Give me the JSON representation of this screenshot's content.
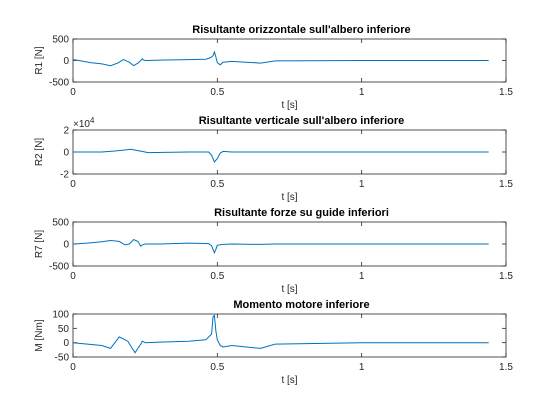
{
  "colors": {
    "series": "#0072BD",
    "axis": "#262626"
  },
  "chart_data": [
    {
      "type": "line",
      "title": "Risultante orizzontale sull'albero inferiore",
      "xlabel": "t [s]",
      "ylabel": "R1 [N]",
      "xlim": [
        0,
        1.5
      ],
      "ylim": [
        -500,
        500
      ],
      "xticks": [
        0,
        0.5,
        1,
        1.5
      ],
      "xticklabels": [
        "0",
        "0.5",
        "1",
        "1.5"
      ],
      "yticks": [
        -500,
        0,
        500
      ],
      "yticklabels": [
        "-500",
        "0",
        "500"
      ],
      "exponent_label": "",
      "grid": false,
      "series": [
        {
          "x": [
            0,
            0.02,
            0.06,
            0.1,
            0.13,
            0.155,
            0.175,
            0.195,
            0.21,
            0.225,
            0.235,
            0.24,
            0.245,
            0.255,
            0.3,
            0.4,
            0.46,
            0.475,
            0.485,
            0.49,
            0.495,
            0.5,
            0.51,
            0.52,
            0.55,
            0.6,
            0.65,
            0.7,
            1.0,
            1.44
          ],
          "y": [
            20,
            0,
            -50,
            -80,
            -120,
            -60,
            20,
            -40,
            -120,
            -60,
            0,
            40,
            10,
            0,
            10,
            20,
            30,
            60,
            110,
            200,
            80,
            -50,
            -100,
            -40,
            -20,
            -40,
            -60,
            -10,
            0,
            0
          ]
        }
      ]
    },
    {
      "type": "line",
      "title": "Risultante verticale sull'albero inferiore",
      "xlabel": "t [s]",
      "ylabel": "R2 [N]",
      "xlim": [
        0,
        1.5
      ],
      "ylim": [
        -2,
        2
      ],
      "xticks": [
        0,
        0.5,
        1,
        1.5
      ],
      "xticklabels": [
        "0",
        "0.5",
        "1",
        "1.5"
      ],
      "yticks": [
        -2,
        0,
        2
      ],
      "yticklabels": [
        "-2",
        "0",
        "2"
      ],
      "exponent_label": "×10^4",
      "grid": false,
      "series": [
        {
          "x": [
            0,
            0.1,
            0.15,
            0.2,
            0.23,
            0.26,
            0.4,
            0.47,
            0.48,
            0.49,
            0.5,
            0.51,
            0.52,
            0.55,
            0.7,
            1.0,
            1.44
          ],
          "y": [
            0,
            0,
            0.1,
            0.25,
            0.1,
            -0.05,
            0,
            0,
            -0.3,
            -0.9,
            -0.6,
            -0.1,
            0.05,
            0,
            0,
            0,
            0
          ]
        }
      ]
    },
    {
      "type": "line",
      "title": "Risultante forze su guide inferiori",
      "xlabel": "t [s]",
      "ylabel": "R7 [N]",
      "xlim": [
        0,
        1.5
      ],
      "ylim": [
        -500,
        500
      ],
      "xticks": [
        0,
        0.5,
        1,
        1.5
      ],
      "xticklabels": [
        "0",
        "0.5",
        "1",
        "1.5"
      ],
      "yticks": [
        -500,
        0,
        500
      ],
      "yticklabels": [
        "-500",
        "0",
        "500"
      ],
      "exponent_label": "",
      "grid": false,
      "series": [
        {
          "x": [
            0,
            0.05,
            0.1,
            0.13,
            0.16,
            0.18,
            0.195,
            0.21,
            0.225,
            0.235,
            0.24,
            0.25,
            0.3,
            0.4,
            0.47,
            0.48,
            0.49,
            0.495,
            0.5,
            0.52,
            0.55,
            0.65,
            0.7,
            1.0,
            1.44
          ],
          "y": [
            0,
            20,
            50,
            80,
            60,
            -20,
            0,
            100,
            60,
            -50,
            -20,
            0,
            0,
            20,
            10,
            -40,
            -200,
            -120,
            -30,
            -10,
            0,
            -10,
            0,
            0,
            0
          ]
        }
      ]
    },
    {
      "type": "line",
      "title": "Momento motore inferiore",
      "xlabel": "t [s]",
      "ylabel": "M [Nm]",
      "xlim": [
        0,
        1.5
      ],
      "ylim": [
        -50,
        100
      ],
      "xticks": [
        0,
        0.5,
        1,
        1.5
      ],
      "xticklabels": [
        "0",
        "0.5",
        "1",
        "1.5"
      ],
      "yticks": [
        -50,
        0,
        50,
        100
      ],
      "yticklabels": [
        "-50",
        "0",
        "50",
        "100"
      ],
      "exponent_label": "",
      "grid": false,
      "series": [
        {
          "x": [
            0,
            0.05,
            0.1,
            0.13,
            0.16,
            0.19,
            0.205,
            0.215,
            0.225,
            0.235,
            0.24,
            0.25,
            0.3,
            0.4,
            0.46,
            0.48,
            0.485,
            0.49,
            0.495,
            0.5,
            0.51,
            0.52,
            0.55,
            0.6,
            0.65,
            0.7,
            1.0,
            1.44
          ],
          "y": [
            0,
            -5,
            -10,
            -20,
            20,
            5,
            -20,
            -35,
            -20,
            -5,
            5,
            0,
            2,
            5,
            10,
            30,
            90,
            95,
            40,
            10,
            -10,
            -15,
            -10,
            -15,
            -20,
            -5,
            0,
            0
          ]
        }
      ]
    }
  ]
}
